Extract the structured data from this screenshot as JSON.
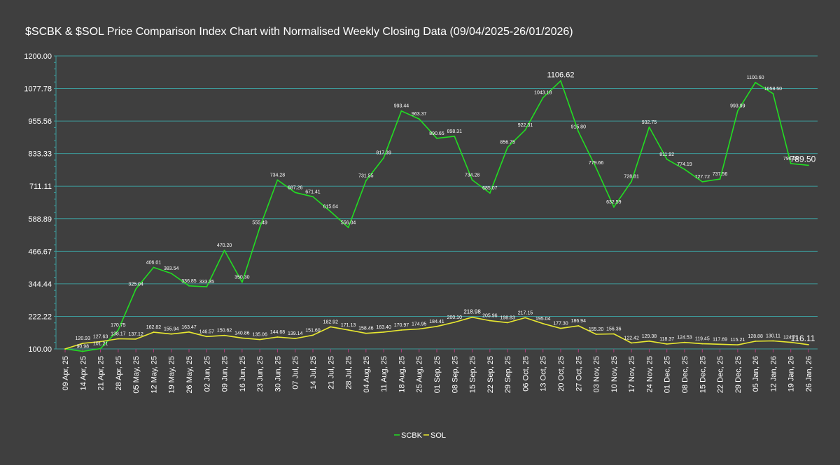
{
  "chart_data": {
    "type": "line",
    "title": "$SCBK & $SOL Price Comparison Index Chart with Normalised Weekly Closing Data (09/04/2025-26/01/2026)",
    "xlabel": "",
    "ylabel": "",
    "ylim": [
      100,
      1200
    ],
    "yticks": [
      "100.00",
      "222.22",
      "344.44",
      "466.67",
      "588.89",
      "711.11",
      "833.33",
      "955.56",
      "1077.78",
      "1200.00"
    ],
    "ytick_values": [
      100,
      222.22,
      344.44,
      466.67,
      588.89,
      711.11,
      833.33,
      955.56,
      1077.78,
      1200
    ],
    "grid": true,
    "legend_position": "bottom-center",
    "categories": [
      "09 Apr, 25",
      "14 Apr, 25",
      "21 Apr, 25",
      "28 Apr, 25",
      "05 May, 25",
      "12 May, 25",
      "19 May, 25",
      "26 May, 25",
      "02 Jun, 25",
      "09 Jun, 25",
      "16 Jun, 25",
      "23 Jun, 25",
      "30 Jun, 25",
      "07 Jul, 25",
      "14 Jul, 25",
      "21 Jul, 25",
      "28 Jul, 25",
      "04 Aug, 25",
      "11 Aug, 25",
      "18 Aug, 25",
      "25 Aug, 25",
      "01 Sep, 25",
      "08 Sep, 25",
      "15 Sep, 25",
      "22 Sep, 25",
      "29 Sep, 25",
      "06 Oct, 25",
      "13 Oct, 25",
      "20 Oct, 25",
      "27 Oct, 25",
      "03 Nov, 25",
      "10 Nov, 25",
      "17 Nov, 25",
      "24 Nov, 25",
      "01 Dec, 25",
      "08 Dec, 25",
      "15 Dec, 25",
      "22 Dec, 25",
      "29 Dec, 25",
      "05 Jan, 26",
      "12 Jan, 26",
      "19 Jan, 26",
      "26 Jan, 26"
    ],
    "series": [
      {
        "name": "SCBK",
        "color": "#22dd22",
        "values": [
          100.0,
          90.98,
          101.21,
          170.75,
          325.04,
          406.01,
          383.54,
          336.85,
          333.35,
          470.2,
          350.3,
          555.49,
          734.28,
          687.26,
          671.41,
          615.64,
          556.04,
          731.55,
          817.39,
          993.44,
          963.37,
          890.65,
          898.31,
          734.28,
          685.07,
          856.75,
          922.31,
          1043.18,
          1106.62,
          915.8,
          779.66,
          632.59,
          728.81,
          932.75,
          811.92,
          774.19,
          727.72,
          737.56,
          993.99,
          1100.6,
          1058.5,
          796.06,
          789.5
        ],
        "labels": [
          "",
          "90.98",
          "101.21",
          "170.75",
          "325.04",
          "406.01",
          "383.54",
          "336.85",
          "333.35",
          "470.20",
          "350.30",
          "555.49",
          "734.28",
          "687.26",
          "671.41",
          "615.64",
          "556.04",
          "731.55",
          "817.39",
          "993.44",
          "963.37",
          "890.65",
          "898.31",
          "734.28",
          "685.07",
          "856.75",
          "922.31",
          "1043.18",
          "1106.62",
          "915.80",
          "779.66",
          "632.59",
          "728.81",
          "932.75",
          "811.92",
          "774.19",
          "727.72",
          "737.56",
          "993.99",
          "1100.60",
          "1058.50",
          "796.06",
          "789.50"
        ]
      },
      {
        "name": "SOL",
        "color": "#e8e830",
        "values": [
          100.0,
          120.93,
          127.63,
          138.17,
          137.12,
          162.82,
          155.94,
          163.47,
          146.57,
          150.62,
          140.86,
          135.06,
          144.68,
          139.14,
          151.6,
          182.92,
          171.13,
          158.46,
          163.4,
          170.97,
          174.95,
          184.41,
          200.1,
          218.98,
          205.96,
          198.83,
          217.15,
          195.04,
          177.3,
          186.94,
          155.2,
          156.36,
          122.42,
          129.38,
          118.37,
          124.53,
          119.45,
          117.69,
          115.21,
          128.88,
          130.11,
          124.71,
          116.11
        ],
        "labels": [
          "",
          "120.93",
          "127.63",
          "138.17",
          "137.12",
          "162.82",
          "155.94",
          "163.47",
          "146.57",
          "150.62",
          "140.86",
          "135.06",
          "144.68",
          "139.14",
          "151.60",
          "182.92",
          "171.13",
          "158.46",
          "163.40",
          "170.97",
          "174.95",
          "184.41",
          "200.10",
          "218.98",
          "205.96",
          "198.83",
          "217.15",
          "195.04",
          "177.30",
          "186.94",
          "155.20",
          "156.36",
          "122.42",
          "129.38",
          "118.37",
          "124.53",
          "119.45",
          "117.69",
          "115.21",
          "128.88",
          "130.11",
          "124.71",
          "116.11"
        ]
      }
    ],
    "highlight_labels": {
      "SCBK": [
        "1106.62",
        "789.50"
      ],
      "SOL": [
        "218.98",
        "116.11"
      ]
    }
  }
}
